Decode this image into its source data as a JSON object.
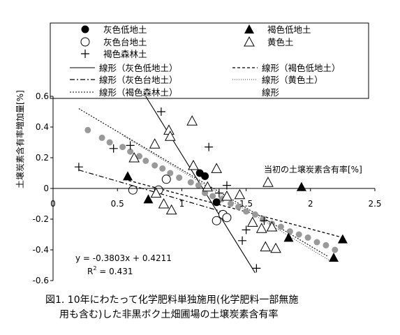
{
  "caption": {
    "line1": "図1. 10年にわたって化学肥料単独施用(化学肥料一部無施",
    "line2": "用も含む)した非黒ボク土畑圃場の土壌炭素含有率"
  },
  "chart_data": {
    "type": "scatter",
    "xlabel": "当初の土壌炭素含有率[%]",
    "ylabel": "土壌炭素含有率増加量[%]",
    "xlim": [
      0,
      2.5
    ],
    "ylim": [
      -0.6,
      0.6
    ],
    "xticks": [
      0,
      0.5,
      1,
      1.5,
      2,
      2.5
    ],
    "xtick_labels": [
      "0",
      "0.5",
      "1",
      "1.5",
      "2",
      "2.5"
    ],
    "yticks": [
      -0.6,
      -0.4,
      -0.2,
      0,
      0.2,
      0.4,
      0.6
    ],
    "ytick_labels": [
      "-0.6",
      "-0.4",
      "-0.2",
      "0",
      "0.2",
      "0.4",
      "0.6"
    ],
    "grid": false,
    "legend_position": "top",
    "series": [
      {
        "name": "灰色低地土",
        "marker": "filled-circle",
        "x": [
          1.14,
          1.18,
          1.27
        ],
        "y": [
          0.1,
          0.08,
          -0.09
        ]
      },
      {
        "name": "褐色低地土",
        "marker": "filled-triangle",
        "x": [
          0.58,
          0.74,
          1.83,
          1.93,
          2.18,
          2.25
        ],
        "y": [
          0.08,
          -0.07,
          -0.32,
          0.01,
          -0.45,
          -0.33
        ]
      },
      {
        "name": "灰色台地土",
        "marker": "open-circle",
        "x": [
          0.62,
          0.82,
          0.88,
          1.27,
          1.32,
          1.35
        ],
        "y": [
          -0.01,
          -0.01,
          0.06,
          -0.21,
          -0.17,
          -0.19
        ]
      },
      {
        "name": "黄色土",
        "marker": "open-triangle",
        "x": [
          0.63,
          0.79,
          0.8,
          0.86,
          0.9,
          0.91,
          0.92,
          1.08,
          1.09,
          1.2,
          1.27,
          1.35,
          1.45,
          1.55,
          1.62,
          1.65,
          1.67,
          1.7,
          1.73
        ],
        "y": [
          0.2,
          0.29,
          -0.03,
          -0.1,
          0.38,
          0.34,
          -0.14,
          0.44,
          0.15,
          0.01,
          0.13,
          -0.05,
          -0.04,
          -0.22,
          -0.26,
          -0.38,
          0.04,
          -0.25,
          -0.39
        ]
      },
      {
        "name": "褐色森林土",
        "marker": "plus",
        "x": [
          0.2,
          0.47,
          0.6,
          0.84,
          1.21,
          1.29,
          1.35,
          1.47,
          1.5,
          1.58,
          1.64
        ],
        "y": [
          0.14,
          0.26,
          0.28,
          0.5,
          0.27,
          -0.03,
          0.02,
          -0.34,
          -0.27,
          -0.52,
          -0.21
        ]
      },
      {
        "name": "",
        "marker": "gray-dot",
        "x": [
          0.27,
          0.38,
          0.44,
          0.54,
          0.6,
          0.67,
          0.72,
          0.79,
          0.85,
          0.91,
          0.98,
          1.07,
          1.13,
          1.18,
          1.24,
          1.31,
          1.38,
          1.44,
          1.5,
          1.57,
          1.63,
          1.7,
          1.77,
          1.84,
          1.91,
          1.98,
          2.05,
          2.12,
          2.19
        ],
        "y": [
          0.38,
          0.33,
          0.3,
          0.27,
          0.24,
          0.21,
          0.18,
          0.15,
          0.13,
          0.1,
          0.07,
          0.04,
          0.02,
          -0.03,
          -0.05,
          -0.07,
          -0.1,
          -0.12,
          -0.15,
          -0.17,
          -0.2,
          -0.23,
          -0.25,
          -0.28,
          -0.3,
          -0.32,
          -0.35,
          -0.37,
          -0.4
        ]
      }
    ],
    "trendlines": [
      {
        "name": "線形（灰色低地土）",
        "style": "solid",
        "x": [
          0.72,
          1.57
        ],
        "y": [
          0.6,
          -0.55
        ]
      },
      {
        "name": "線形（褐色低地土）",
        "style": "dash-short",
        "x": [
          0.55,
          2.25
        ],
        "y": [
          0.06,
          -0.32
        ]
      },
      {
        "name": "線形（灰色台地土）",
        "style": "dash-dot",
        "x": [
          0.2,
          1.35
        ],
        "y": [
          0.12,
          -0.16
        ]
      },
      {
        "name": "線形（黄色土）",
        "style": "dot-fine",
        "x": [
          0.55,
          2.15
        ],
        "y": [
          0.34,
          -0.47
        ]
      },
      {
        "name": "線形（褐色森林土）",
        "style": "dot",
        "x": [
          0.2,
          2.13
        ],
        "y": [
          0.52,
          -0.44
        ]
      },
      {
        "name": "線形",
        "style": "none",
        "x": [],
        "y": []
      }
    ],
    "annotations": {
      "equation": "y = -0.3803x + 0.4211",
      "r2_prefix": "R",
      "r2_exp": "2",
      "r2_value": " = 0.431"
    }
  }
}
